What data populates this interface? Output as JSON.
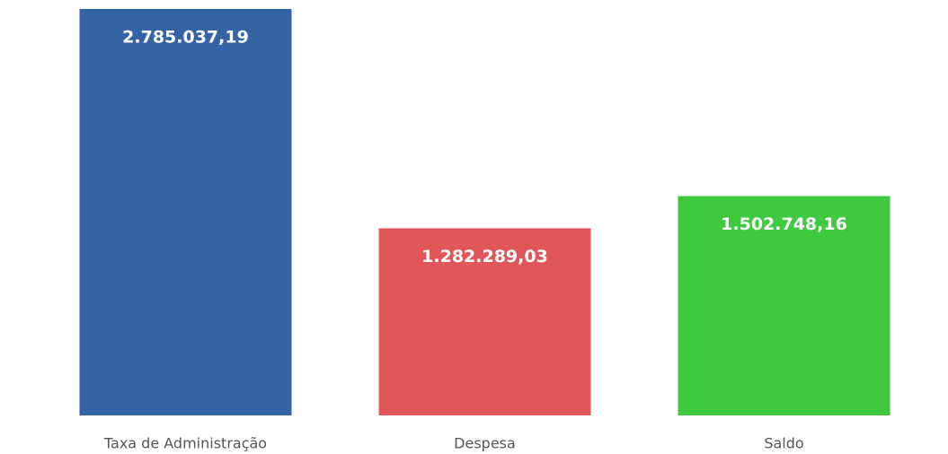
{
  "chart_data": {
    "type": "bar",
    "categories": [
      "Taxa de Administração",
      "Despesa",
      "Saldo"
    ],
    "values": [
      2785037.19,
      1282289.03,
      1502748.16
    ],
    "value_labels": [
      "2.785.037,19",
      "1.282.289,03",
      "1.502.748,16"
    ],
    "colors": [
      "#3463a6",
      "#e0575a",
      "#3fc93f"
    ]
  }
}
